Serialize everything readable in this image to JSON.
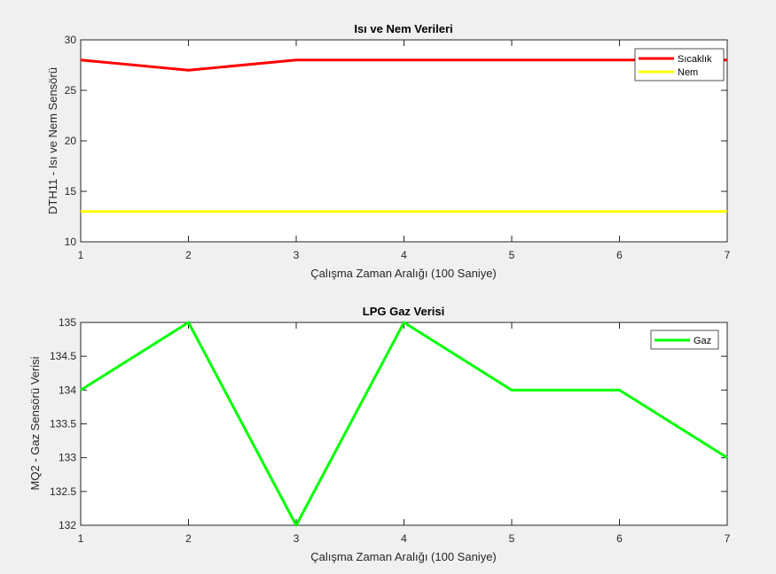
{
  "chart_data": [
    {
      "type": "line",
      "title": "Isı ve Nem Verileri",
      "xlabel": "Çalışma Zaman Aralığı (100 Saniye)",
      "ylabel": "DTH11 - Isı ve Nem Sensörü",
      "xlim": [
        1,
        7
      ],
      "ylim": [
        10,
        30
      ],
      "xticks": [
        "1",
        "2",
        "3",
        "4",
        "5",
        "6",
        "7"
      ],
      "yticks": [
        "10",
        "15",
        "20",
        "25",
        "30"
      ],
      "x": [
        1,
        2,
        3,
        4,
        5,
        6,
        7
      ],
      "legend_position": "top-right",
      "grid": false,
      "series": [
        {
          "name": "Sıcaklık",
          "color": "#ff0000",
          "values": [
            28,
            27,
            28,
            28,
            28,
            28,
            28
          ]
        },
        {
          "name": "Nem",
          "color": "#ffff00",
          "values": [
            13,
            13,
            13,
            13,
            13,
            13,
            13
          ]
        }
      ]
    },
    {
      "type": "line",
      "title": "LPG Gaz Verisi",
      "xlabel": "Çalışma Zaman Aralığı (100 Saniye)",
      "ylabel": "MQ2 - Gaz Sensörü Verisi",
      "xlim": [
        1,
        7
      ],
      "ylim": [
        132,
        135
      ],
      "xticks": [
        "1",
        "2",
        "3",
        "4",
        "5",
        "6",
        "7"
      ],
      "yticks": [
        "132",
        "132.5",
        "133",
        "133.5",
        "134",
        "134.5",
        "135"
      ],
      "x": [
        1,
        2,
        3,
        4,
        5,
        6,
        7
      ],
      "legend_position": "top-right",
      "grid": false,
      "series": [
        {
          "name": "Gaz",
          "color": "#00ff00",
          "values": [
            134,
            135,
            132,
            135,
            134,
            134,
            133
          ]
        }
      ]
    }
  ]
}
